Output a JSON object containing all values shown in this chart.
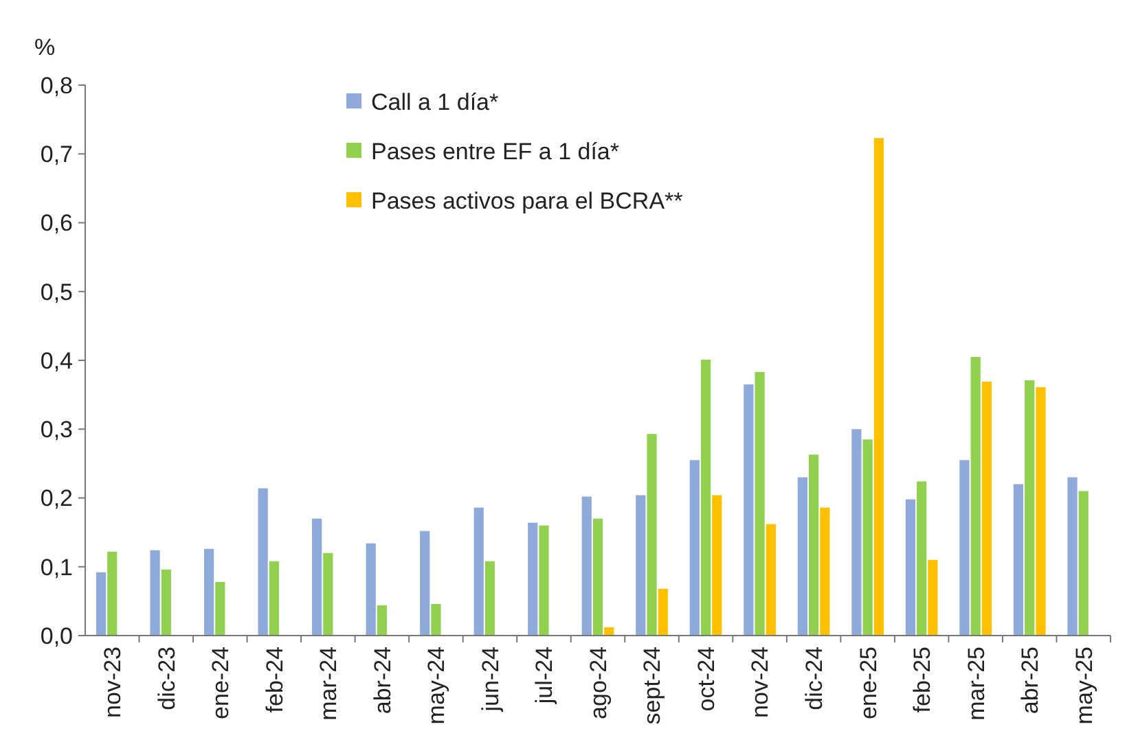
{
  "chart_data": {
    "type": "bar",
    "ylabel": "%",
    "categories": [
      "nov-23",
      "dic-23",
      "ene-24",
      "feb-24",
      "mar-24",
      "abr-24",
      "may-24",
      "jun-24",
      "jul-24",
      "ago-24",
      "sept-24",
      "oct-24",
      "nov-24",
      "dic-24",
      "ene-25",
      "feb-25",
      "mar-25",
      "abr-25",
      "may-25"
    ],
    "series": [
      {
        "name": "Call a 1 día*",
        "color": "#8eaadb",
        "values": [
          0.092,
          0.124,
          0.126,
          0.214,
          0.17,
          0.134,
          0.152,
          0.186,
          0.164,
          0.202,
          0.204,
          0.255,
          0.365,
          0.23,
          0.3,
          0.198,
          0.255,
          0.22,
          0.23
        ]
      },
      {
        "name": "Pases entre EF a 1 día*",
        "color": "#92d050",
        "values": [
          0.122,
          0.096,
          0.078,
          0.108,
          0.12,
          0.044,
          0.046,
          0.108,
          0.16,
          0.17,
          0.293,
          0.401,
          0.383,
          0.263,
          0.285,
          0.224,
          0.405,
          0.371,
          0.21
        ]
      },
      {
        "name": "Pases activos para el BCRA**",
        "color": "#ffc000",
        "values": [
          null,
          null,
          null,
          null,
          null,
          null,
          null,
          null,
          null,
          0.012,
          0.068,
          0.204,
          0.162,
          0.186,
          0.723,
          0.11,
          0.369,
          0.361,
          null
        ]
      }
    ],
    "ylim": [
      0,
      0.8
    ],
    "yticks": [
      {
        "value": 0,
        "label": "0,0"
      },
      {
        "value": 0.1,
        "label": "0,1"
      },
      {
        "value": 0.2,
        "label": "0,2"
      },
      {
        "value": 0.3,
        "label": "0,3"
      },
      {
        "value": 0.4,
        "label": "0,4"
      },
      {
        "value": 0.5,
        "label": "0,5"
      },
      {
        "value": 0.6,
        "label": "0,6"
      },
      {
        "value": 0.7,
        "label": "0,7"
      },
      {
        "value": 0.8,
        "label": "0,8"
      }
    ],
    "grid": false,
    "legend": "top left"
  }
}
